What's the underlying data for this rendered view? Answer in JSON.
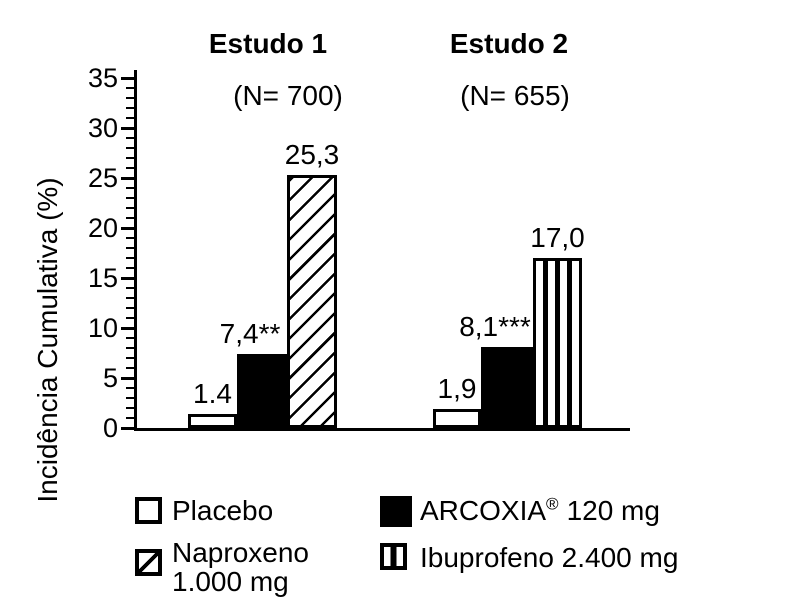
{
  "colors": {
    "ink": "#000000",
    "paper": "#ffffff"
  },
  "chart_data": {
    "type": "bar",
    "title": "",
    "xlabel": "",
    "ylabel": "Incidência Cumulativa (%)",
    "ylim": [
      0,
      35
    ],
    "ytick_interval": 5,
    "minor_tick_interval": 1,
    "yticks": [
      0,
      5,
      10,
      15,
      20,
      25,
      30,
      35
    ],
    "grid": false,
    "legend_position": "bottom",
    "groups": [
      {
        "id": "estudo-1",
        "title": "Estudo 1",
        "n_label": "(N= 700)",
        "bars": [
          {
            "id": "placebo",
            "series": "Placebo",
            "value": 1.4,
            "value_label": "1.4",
            "pattern": "plain"
          },
          {
            "id": "arcoxia",
            "series": "ARCOXIA 120 mg",
            "value": 7.4,
            "value_label": "7,4**",
            "pattern": "solid"
          },
          {
            "id": "naproxeno",
            "series": "Naproxeno 1.000 mg",
            "value": 25.3,
            "value_label": "25,3",
            "pattern": "diagonal"
          }
        ]
      },
      {
        "id": "estudo-2",
        "title": "Estudo 2",
        "n_label": "(N= 655)",
        "bars": [
          {
            "id": "placebo",
            "series": "Placebo",
            "value": 1.9,
            "value_label": "1,9",
            "pattern": "plain"
          },
          {
            "id": "arcoxia",
            "series": "ARCOXIA 120 mg",
            "value": 8.1,
            "value_label": "8,1***",
            "pattern": "solid"
          },
          {
            "id": "ibuprofeno",
            "series": "Ibuprofeno 2.400 mg",
            "value": 17.0,
            "value_label": "17,0",
            "pattern": "vertical"
          }
        ]
      }
    ]
  },
  "legend": {
    "placebo": {
      "label": "Placebo"
    },
    "arcoxia": {
      "brand": "ARCOXIA",
      "reg_mark": "®",
      "dose": "120 mg"
    },
    "naproxeno": {
      "line1": "Naproxeno",
      "line2": "1.000 mg"
    },
    "ibuprofeno": {
      "label": "Ibuprofeno 2.400 mg"
    }
  }
}
